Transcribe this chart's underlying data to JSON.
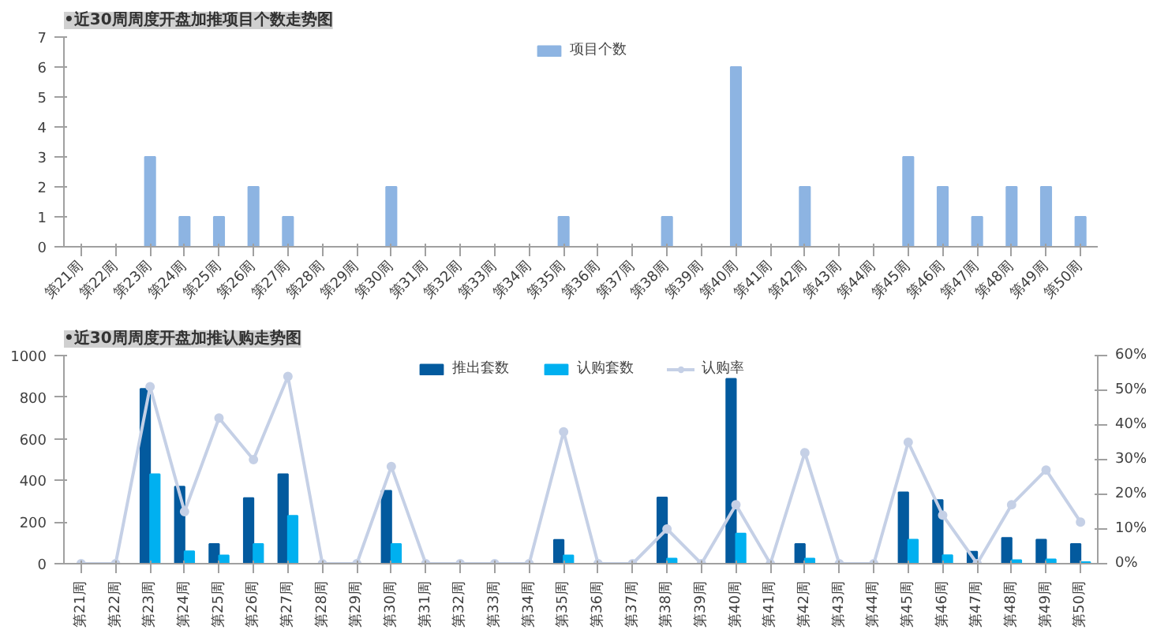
{
  "chart_data": [
    {
      "type": "bar",
      "title": "•近30周周度开盘加推项目个数走势图",
      "categories": [
        "第21周",
        "第22周",
        "第23周",
        "第24周",
        "第25周",
        "第26周",
        "第27周",
        "第28周",
        "第29周",
        "第30周",
        "第31周",
        "第32周",
        "第33周",
        "第34周",
        "第35周",
        "第36周",
        "第37周",
        "第38周",
        "第39周",
        "第40周",
        "第41周",
        "第42周",
        "第43周",
        "第44周",
        "第45周",
        "第46周",
        "第47周",
        "第48周",
        "第49周",
        "第50周"
      ],
      "series": [
        {
          "name": "项目个数",
          "color": "#8db4e2",
          "values": [
            0,
            0,
            3,
            1,
            1,
            2,
            1,
            0,
            0,
            2,
            0,
            0,
            0,
            0,
            1,
            0,
            0,
            1,
            0,
            6,
            0,
            2,
            0,
            0,
            3,
            2,
            1,
            2,
            2,
            1
          ]
        }
      ],
      "ylim": [
        0,
        7
      ],
      "yticks": [
        0,
        1,
        2,
        3,
        4,
        5,
        6,
        7
      ],
      "legend": "top",
      "grid": false
    },
    {
      "type": "bar",
      "title": "•近30周周度开盘加推认购走势图",
      "categories": [
        "第21周",
        "第22周",
        "第23周",
        "第24周",
        "第25周",
        "第26周",
        "第27周",
        "第28周",
        "第29周",
        "第30周",
        "第31周",
        "第32周",
        "第33周",
        "第34周",
        "第35周",
        "第36周",
        "第37周",
        "第38周",
        "第39周",
        "第40周",
        "第41周",
        "第42周",
        "第43周",
        "第44周",
        "第45周",
        "第46周",
        "第47周",
        "第48周",
        "第49周",
        "第50周"
      ],
      "series": [
        {
          "name": "推出套数",
          "color": "#035a9e",
          "values": [
            0,
            0,
            840,
            370,
            95,
            315,
            430,
            0,
            0,
            350,
            0,
            0,
            0,
            0,
            115,
            0,
            0,
            318,
            0,
            888,
            0,
            95,
            0,
            0,
            343,
            306,
            58,
            124,
            116,
            95
          ]
        },
        {
          "name": "认购套数",
          "color": "#00b0f0",
          "values": [
            0,
            0,
            430,
            60,
            40,
            95,
            230,
            0,
            0,
            95,
            0,
            0,
            0,
            0,
            40,
            0,
            0,
            25,
            0,
            145,
            0,
            25,
            0,
            0,
            116,
            41,
            null,
            17,
            21,
            8
          ]
        },
        {
          "name": "认购率",
          "color": "#c5d0e6",
          "type": "line",
          "axis": "y2",
          "marker": "circle",
          "values": [
            0,
            0,
            51,
            15,
            42,
            30,
            54,
            0,
            0,
            28,
            0,
            0,
            0,
            0,
            38,
            0,
            0,
            10,
            0,
            17,
            0,
            32,
            0,
            0,
            35,
            14,
            0,
            17,
            27,
            12
          ]
        }
      ],
      "ylim": [
        0,
        1000
      ],
      "yticks": [
        0,
        200,
        400,
        600,
        800,
        1000
      ],
      "y2lim": [
        0,
        60
      ],
      "y2ticks": [
        {
          "value": 0,
          "label": "0%"
        },
        {
          "value": 10,
          "label": "10%"
        },
        {
          "value": 20,
          "label": "20%"
        },
        {
          "value": 30,
          "label": "30%"
        },
        {
          "value": 40,
          "label": "40%"
        },
        {
          "value": 50,
          "label": "50%"
        },
        {
          "value": 60,
          "label": "60%"
        }
      ],
      "legend": "top",
      "grid": false
    }
  ]
}
